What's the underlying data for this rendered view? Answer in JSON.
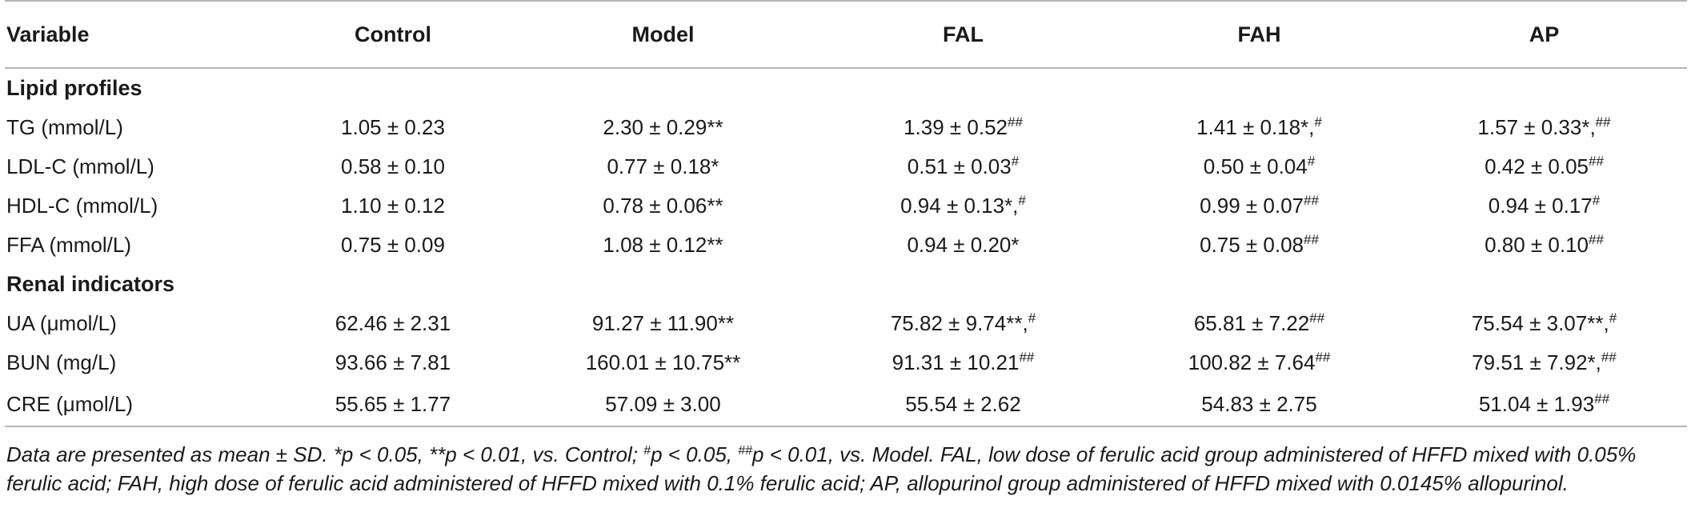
{
  "table": {
    "headers": [
      "Variable",
      "Control",
      "Model",
      "FAL",
      "FAH",
      "AP"
    ],
    "sections": [
      {
        "title": "Lipid profiles",
        "rows": [
          {
            "label": "TG (mmol/L)",
            "cells": [
              {
                "v": "1.05 ± 0.23",
                "s": ""
              },
              {
                "v": "2.30 ± 0.29**",
                "s": ""
              },
              {
                "v": "1.39 ± 0.52",
                "s": "##"
              },
              {
                "v": "1.41 ± 0.18*,",
                "s": "#"
              },
              {
                "v": "1.57 ± 0.33*,",
                "s": "##"
              }
            ]
          },
          {
            "label": "LDL-C (mmol/L)",
            "cells": [
              {
                "v": "0.58 ± 0.10",
                "s": ""
              },
              {
                "v": "0.77 ± 0.18*",
                "s": ""
              },
              {
                "v": "0.51 ± 0.03",
                "s": "#"
              },
              {
                "v": "0.50 ± 0.04",
                "s": "#"
              },
              {
                "v": "0.42 ± 0.05",
                "s": "##"
              }
            ]
          },
          {
            "label": "HDL-C (mmol/L)",
            "cells": [
              {
                "v": "1.10 ± 0.12",
                "s": ""
              },
              {
                "v": "0.78 ± 0.06**",
                "s": ""
              },
              {
                "v": "0.94 ± 0.13*,",
                "s": "#"
              },
              {
                "v": "0.99 ± 0.07",
                "s": "##"
              },
              {
                "v": "0.94 ± 0.17",
                "s": "#"
              }
            ]
          },
          {
            "label": "FFA (mmol/L)",
            "cells": [
              {
                "v": "0.75 ± 0.09",
                "s": ""
              },
              {
                "v": "1.08 ± 0.12**",
                "s": ""
              },
              {
                "v": "0.94 ± 0.20*",
                "s": ""
              },
              {
                "v": "0.75 ± 0.08",
                "s": "##"
              },
              {
                "v": "0.80 ± 0.10",
                "s": "##"
              }
            ]
          }
        ]
      },
      {
        "title": "Renal indicators",
        "rows": [
          {
            "label": "UA (μmol/L)",
            "cells": [
              {
                "v": "62.46 ± 2.31",
                "s": ""
              },
              {
                "v": "91.27 ± 11.90**",
                "s": ""
              },
              {
                "v": "75.82 ± 9.74**,",
                "s": "#"
              },
              {
                "v": "65.81 ± 7.22",
                "s": "##"
              },
              {
                "v": "75.54 ± 3.07**,",
                "s": "#"
              }
            ]
          },
          {
            "label": "BUN (mg/L)",
            "cells": [
              {
                "v": "93.66 ± 7.81",
                "s": ""
              },
              {
                "v": "160.01 ± 10.75**",
                "s": ""
              },
              {
                "v": "91.31 ± 10.21",
                "s": "##"
              },
              {
                "v": "100.82 ± 7.64",
                "s": "##"
              },
              {
                "v": "79.51 ± 7.92*,",
                "s": "##"
              }
            ]
          },
          {
            "label": "CRE (μmol/L)",
            "cells": [
              {
                "v": "55.65 ± 1.77",
                "s": ""
              },
              {
                "v": "57.09 ± 3.00",
                "s": ""
              },
              {
                "v": "55.54 ± 2.62",
                "s": ""
              },
              {
                "v": "54.83 ± 2.75",
                "s": ""
              },
              {
                "v": "51.04 ± 1.93",
                "s": "##"
              }
            ]
          }
        ]
      }
    ]
  },
  "footnote": {
    "t1": "Data are presented as mean ± SD. *p < 0.05, **p < 0.01, vs. Control; ",
    "s1": "#",
    "t2": "p < 0.05, ",
    "s2": "##",
    "t3": "p < 0.01, vs. Model. FAL, low dose of ferulic acid group administered of HFFD mixed with 0.05% ferulic acid; FAH, high dose of ferulic acid administered of HFFD mixed with 0.1% ferulic acid; AP, allopurinol group administered of HFFD mixed with 0.0145% allopurinol."
  }
}
